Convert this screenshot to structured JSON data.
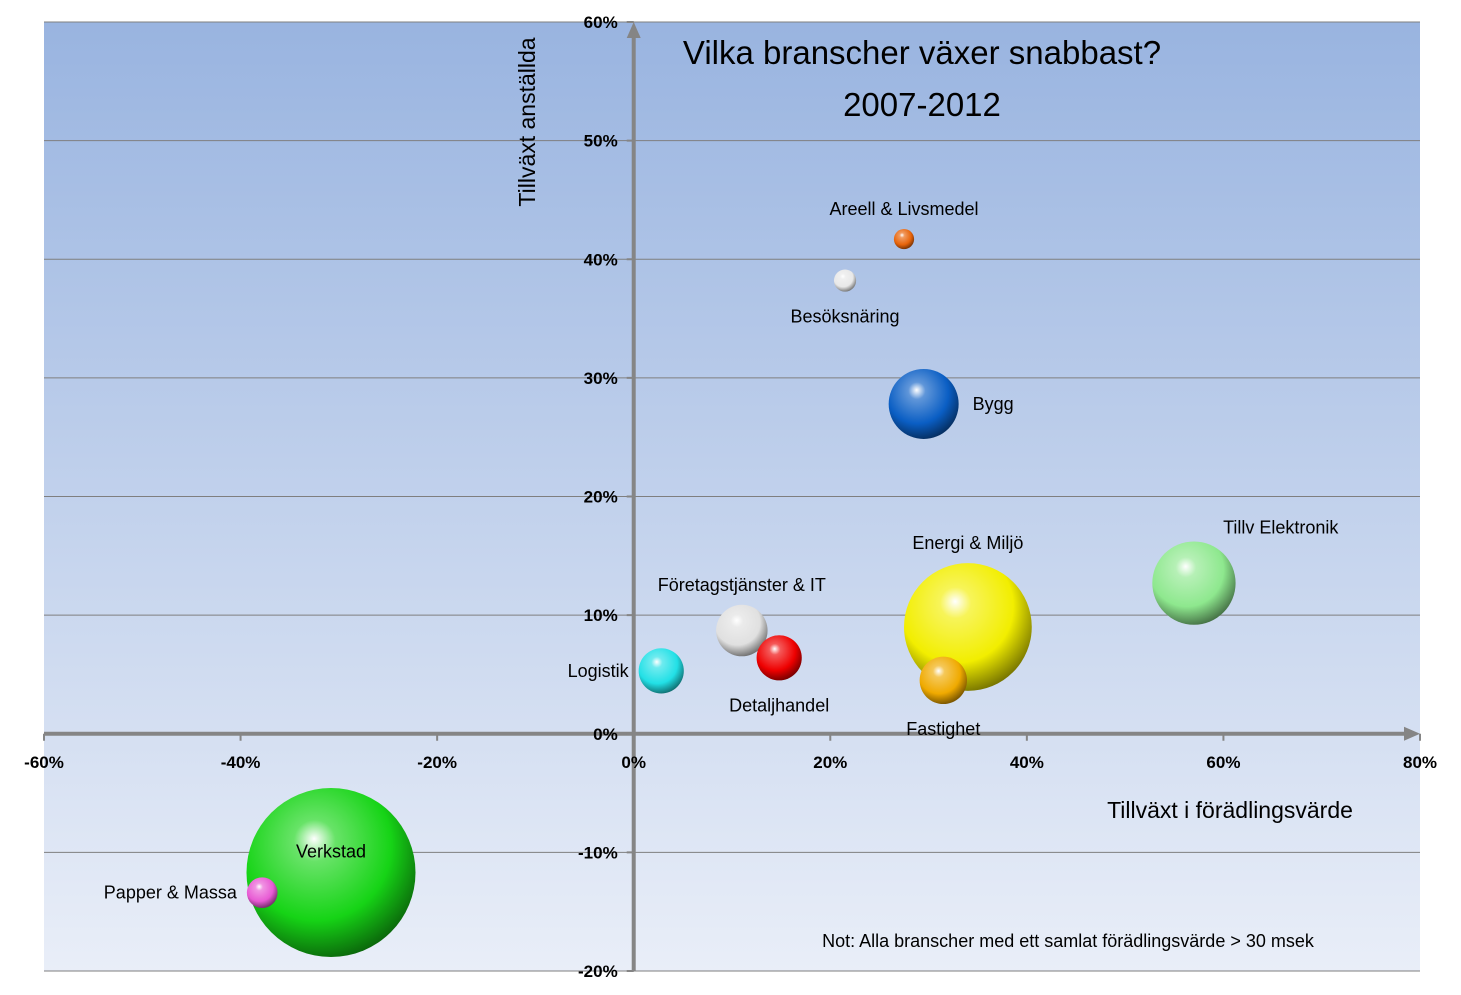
{
  "chart_data": {
    "type": "bubble",
    "title_lines": [
      "Vilka branscher växer snabbast?",
      "2007-2012"
    ],
    "xlabel": "Tillväxt i förädlingsvärde",
    "ylabel": "Tillväxt anställda",
    "note": "Not: Alla branscher med ett samlat förädlingsvärde > 30 msek",
    "xlim": [
      -60,
      80
    ],
    "ylim": [
      -20,
      60
    ],
    "x_ticks": [
      -60,
      -40,
      -20,
      0,
      20,
      40,
      60,
      80
    ],
    "y_ticks": [
      -20,
      -10,
      0,
      10,
      20,
      30,
      40,
      50,
      60
    ],
    "x_tick_labels": [
      "-60%",
      "-40%",
      "-20%",
      "0%",
      "20%",
      "40%",
      "60%",
      "80%"
    ],
    "y_tick_labels": [
      "-20%",
      "-10%",
      "0%",
      "10%",
      "20%",
      "30%",
      "40%",
      "50%",
      "60%"
    ],
    "grid": "horizontal",
    "bubbles": [
      {
        "label": "Areell & Livsmedel",
        "x": 27.5,
        "y": 41.7,
        "size": 1,
        "color": "#e8640a",
        "label_pos": "above"
      },
      {
        "label": "Besöksnäring",
        "x": 21.5,
        "y": 38.2,
        "size": 1.2,
        "color": "#e8e8e8",
        "label_pos": "below"
      },
      {
        "label": "Bygg",
        "x": 29.5,
        "y": 27.8,
        "size": 12,
        "color": "#0a5ec4",
        "label_pos": "right"
      },
      {
        "label": "Energi & Miljö",
        "x": 34,
        "y": 9,
        "size": 40,
        "color": "#f2ee00",
        "label_pos": "above"
      },
      {
        "label": "Tillv Elektronik",
        "x": 57,
        "y": 12.7,
        "size": 17,
        "color": "#8ee88e",
        "label_pos": "above-right"
      },
      {
        "label": "Företagstjänster & IT",
        "x": 11,
        "y": 8.7,
        "size": 6.5,
        "color": "#e0e0e0",
        "label_pos": "above"
      },
      {
        "label": "Detaljhandel",
        "x": 14.8,
        "y": 6.4,
        "size": 5,
        "color": "#ee0000",
        "label_pos": "below"
      },
      {
        "label": "Logistik",
        "x": 2.8,
        "y": 5.3,
        "size": 5,
        "color": "#22e0e6",
        "label_pos": "left"
      },
      {
        "label": "Fastighet",
        "x": 31.5,
        "y": 4.5,
        "size": 5.5,
        "color": "#f0aa00",
        "label_pos": "below"
      },
      {
        "label": "Verkstad",
        "x": -30.8,
        "y": -11.7,
        "size": 70,
        "color": "#16d416",
        "label_pos": "center"
      },
      {
        "label": "Papper & Massa",
        "x": -37.8,
        "y": -13.4,
        "size": 2.3,
        "color": "#e85ad4",
        "label_pos": "left"
      }
    ],
    "colors": {
      "plot_top": "#99b4e0",
      "plot_bottom": "#e9eef8",
      "axis": "#858585",
      "grid": "#7f7f7f"
    }
  }
}
